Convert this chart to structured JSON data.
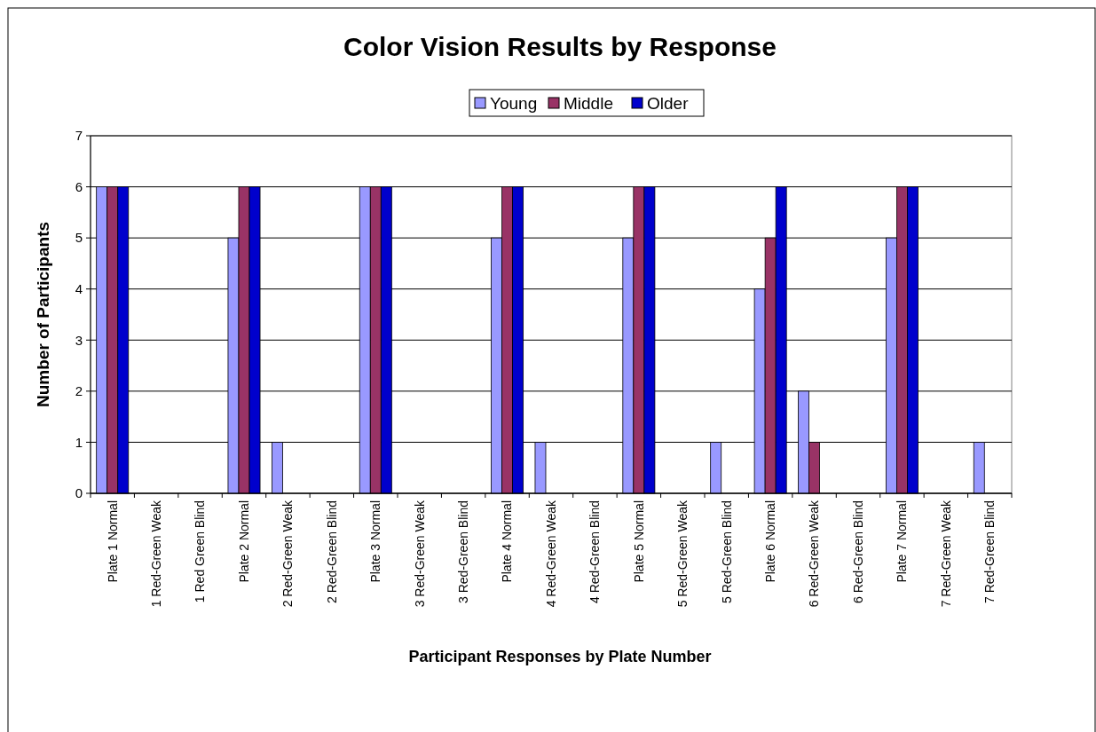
{
  "chart_data": {
    "type": "bar",
    "title": "Color Vision Results by Response",
    "xlabel": "Participant Responses by Plate Number",
    "ylabel": "Number of Participants",
    "categories": [
      "Plate 1 Normal",
      "1 Red-Green Weak",
      "1 Red Green Blind",
      "Plate 2 Normal",
      "2 Red-Green Weak",
      "2 Red-Green Blind",
      "Plate 3 Normal",
      "3 Red-Green Weak",
      "3 Red-Green Blind",
      "Plate 4 Normal",
      "4 Red-Green Weak",
      "4 Red-Green Blind",
      "Plate 5 Normal",
      "5 Red-Green Weak",
      "5 Red-Green Blind",
      "Plate 6 Normal",
      "6 Red-Green Weak",
      "6 Red-Green Blind",
      "Plate 7 Normal",
      "7 Red-Green Weak",
      "7 Red-Green Blind"
    ],
    "series": [
      {
        "name": "Young",
        "color": "#9999ff",
        "values": [
          6,
          0,
          0,
          5,
          1,
          0,
          6,
          0,
          0,
          5,
          1,
          0,
          5,
          0,
          1,
          4,
          2,
          0,
          5,
          0,
          1
        ]
      },
      {
        "name": "Middle",
        "color": "#993366",
        "values": [
          6,
          0,
          0,
          6,
          0,
          0,
          6,
          0,
          0,
          6,
          0,
          0,
          6,
          0,
          0,
          5,
          1,
          0,
          6,
          0,
          0
        ]
      },
      {
        "name": "Older",
        "color": "#0000cc",
        "values": [
          6,
          0,
          0,
          6,
          0,
          0,
          6,
          0,
          0,
          6,
          0,
          0,
          6,
          0,
          0,
          6,
          0,
          0,
          6,
          0,
          0
        ]
      }
    ],
    "ylim": [
      0,
      7
    ],
    "yticks": [
      0,
      1,
      2,
      3,
      4,
      5,
      6,
      7
    ],
    "grid": "y",
    "legend": "top"
  }
}
